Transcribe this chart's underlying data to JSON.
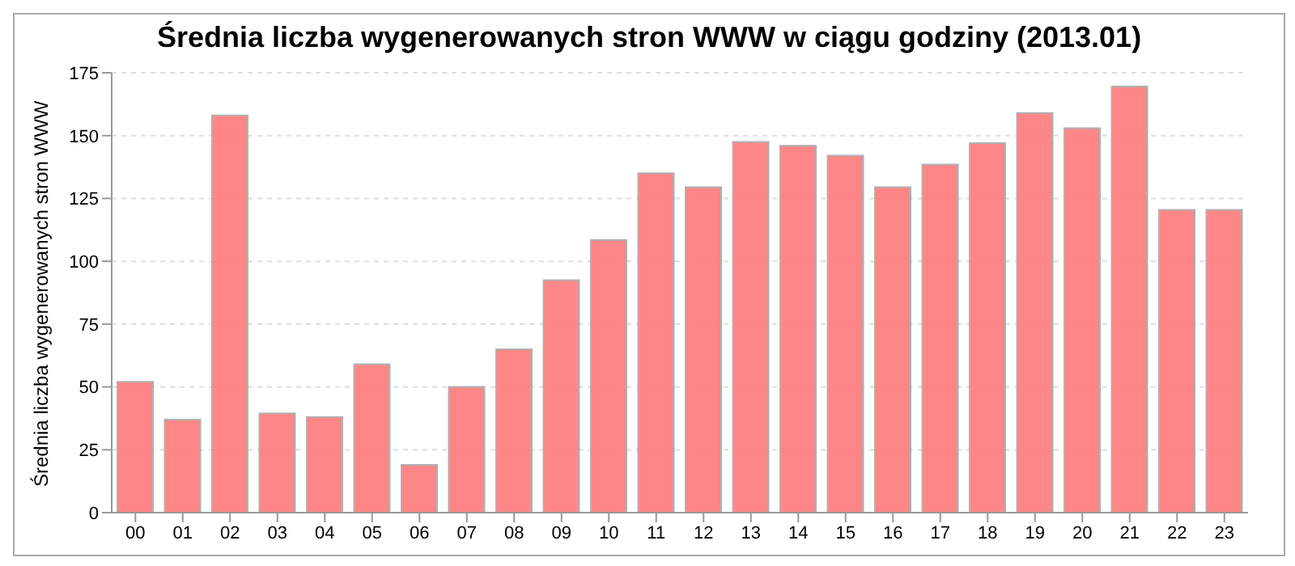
{
  "chart_data": {
    "type": "bar",
    "title": "Średnia liczba wygenerowanych stron WWW w ciągu godziny (2013.01)",
    "ylabel": "Średnia liczba wygenerowanych stron WWW",
    "categories": [
      "00",
      "01",
      "02",
      "03",
      "04",
      "05",
      "06",
      "07",
      "08",
      "09",
      "10",
      "11",
      "12",
      "13",
      "14",
      "15",
      "16",
      "17",
      "18",
      "19",
      "20",
      "21",
      "22",
      "23"
    ],
    "values": [
      52,
      37,
      158,
      39.5,
      38,
      59,
      19,
      50,
      65,
      92.5,
      108.5,
      135,
      129.5,
      147.5,
      146,
      142,
      129.5,
      138.5,
      147,
      159,
      153,
      169.5,
      120.5,
      120.5
    ],
    "color": "#ff8080",
    "ylim": [
      0,
      175
    ],
    "yticks": [
      0,
      25,
      50,
      75,
      100,
      125,
      150,
      175
    ],
    "grid": "y"
  }
}
